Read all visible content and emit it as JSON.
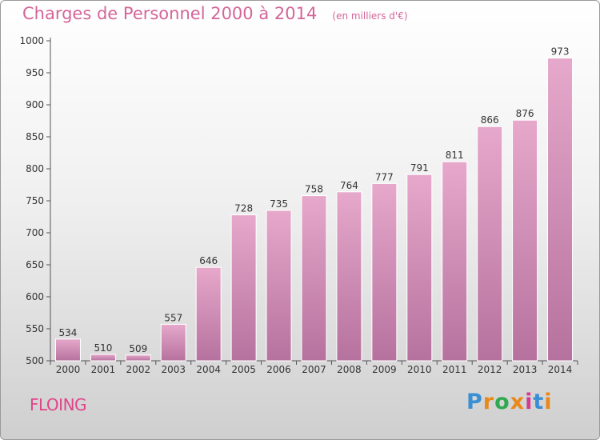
{
  "header": {
    "title": "Charges de Personnel 2000 à 2014",
    "subtitle": "(en milliers d'€)"
  },
  "footer": {
    "commune": "FLOING",
    "logo": "Proxiti"
  },
  "colors": {
    "title": "#d46598",
    "commune": "#e0458a",
    "bar_top": "#e6a8cb",
    "bar_bottom": "#b6729e",
    "axis": "#555555",
    "logo_letters": [
      "#3a8fd4",
      "#e8891a",
      "#2fa84f",
      "#e8891a",
      "#d43a8f",
      "#3a8fd4",
      "#e8891a"
    ]
  },
  "chart_data": {
    "type": "bar",
    "categories": [
      "2000",
      "2001",
      "2002",
      "2003",
      "2004",
      "2005",
      "2006",
      "2007",
      "2008",
      "2009",
      "2010",
      "2011",
      "2012",
      "2013",
      "2014"
    ],
    "values": [
      534,
      510,
      509,
      557,
      646,
      728,
      735,
      758,
      764,
      777,
      791,
      811,
      866,
      876,
      973
    ],
    "ylim": [
      500,
      1000
    ],
    "yticks": [
      500,
      550,
      600,
      650,
      700,
      750,
      800,
      850,
      900,
      950,
      1000
    ],
    "grid": false
  }
}
